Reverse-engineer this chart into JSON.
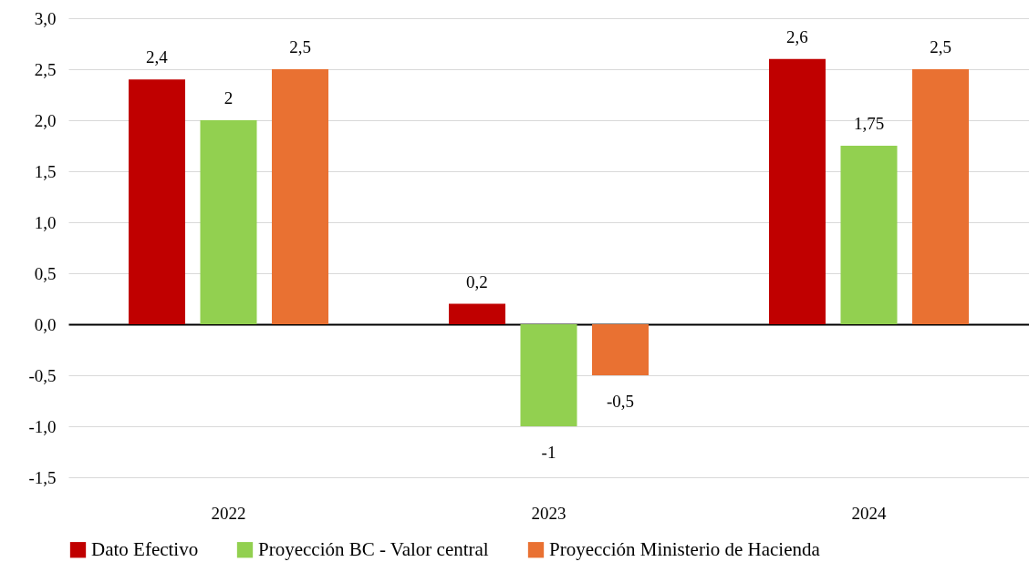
{
  "chart_data": {
    "type": "bar",
    "categories": [
      "2022",
      "2023",
      "2024"
    ],
    "series": [
      {
        "name": "Dato Efectivo",
        "color": "#c00000",
        "values": [
          2.4,
          0.2,
          2.6
        ],
        "value_labels": [
          "2,4",
          "0,2",
          "2,6"
        ]
      },
      {
        "name": "Proyección BC - Valor central",
        "color": "#92d050",
        "values": [
          2,
          -1,
          1.75
        ],
        "value_labels": [
          "2",
          "-1",
          "1,75"
        ]
      },
      {
        "name": "Proyección Ministerio de Hacienda",
        "color": "#e97132",
        "values": [
          2.5,
          -0.5,
          2.5
        ],
        "value_labels": [
          "2,5",
          "-0,5",
          "2,5"
        ]
      }
    ],
    "ylim": [
      -1.5,
      3
    ],
    "yticks": [
      {
        "value": -1.5,
        "label": "-1,5"
      },
      {
        "value": -1,
        "label": "-1,0"
      },
      {
        "value": -0.5,
        "label": "-0,5"
      },
      {
        "value": 0,
        "label": "0,0"
      },
      {
        "value": 0.5,
        "label": "0,5"
      },
      {
        "value": 1,
        "label": "1,0"
      },
      {
        "value": 1.5,
        "label": "1,5"
      },
      {
        "value": 2,
        "label": "2,0"
      },
      {
        "value": 2.5,
        "label": "2,5"
      },
      {
        "value": 3,
        "label": "3,0"
      }
    ],
    "grid": "y",
    "legend": "bottom"
  }
}
